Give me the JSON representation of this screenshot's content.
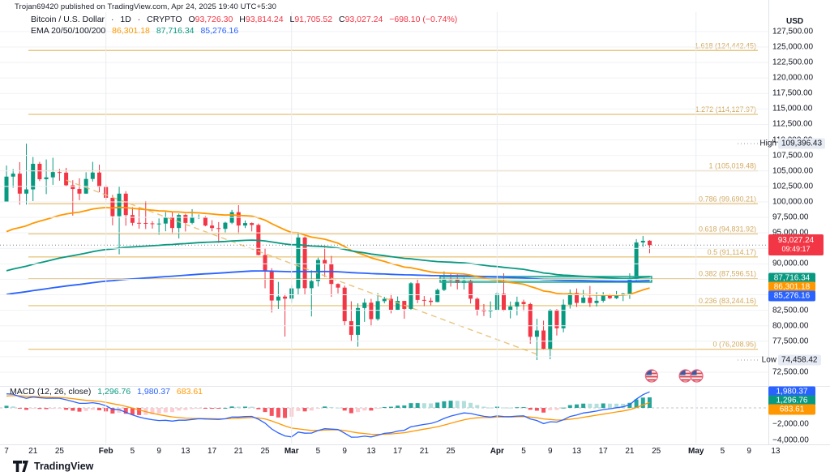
{
  "watermark": "Trojan69420 published on TradingView.com, Apr 24, 2025 19:40 UTC+5:30",
  "legend": {
    "symbol": "Bitcoin / U.S. Dollar",
    "sep": "·",
    "interval": "1D",
    "exchange": "CRYPTO",
    "ohlc": {
      "o_label": "O",
      "o": "93,726.30",
      "h_label": "H",
      "h": "93,814.24",
      "l_label": "L",
      "l": "91,705.52",
      "c_label": "C",
      "c": "93,027.24",
      "change": "−698.10 (−0.74%)"
    },
    "ema": {
      "label": "EMA 20/50/100/200",
      "values": [
        {
          "value": "86,301.18",
          "color": "#FF9800"
        },
        {
          "value": "87,716.34",
          "color": "#089981"
        },
        {
          "value": "85,276.16",
          "color": "#2962FF"
        }
      ]
    }
  },
  "macd_pane": {
    "title": "MACD (12, 26, close)",
    "values": [
      {
        "value": "1,296.76",
        "color": "#089981"
      },
      {
        "value": "1,980.37",
        "color": "#2962FF"
      },
      {
        "value": "683.61",
        "color": "#FF9800"
      }
    ]
  },
  "price_axis": {
    "currency": "USD",
    "labels": [
      {
        "price": 127500,
        "text": "127,500.00"
      },
      {
        "price": 125000,
        "text": "125,000.00"
      },
      {
        "price": 122500,
        "text": "122,500.00"
      },
      {
        "price": 120000,
        "text": "120,000.00"
      },
      {
        "price": 117500,
        "text": "117,500.00"
      },
      {
        "price": 115000,
        "text": "115,000.00"
      },
      {
        "price": 112500,
        "text": "112,500.00"
      },
      {
        "price": 110000,
        "text": "110,000.00"
      },
      {
        "price": 107500,
        "text": "107,500.00"
      },
      {
        "price": 105000,
        "text": "105,000.00"
      },
      {
        "price": 102500,
        "text": "102,500.00"
      },
      {
        "price": 100000,
        "text": "100,000.00"
      },
      {
        "price": 97500,
        "text": "97,500.00"
      },
      {
        "price": 95000,
        "text": "95,000.00"
      },
      {
        "price": 90000,
        "text": "90,000.00"
      },
      {
        "price": 82500,
        "text": "82,500.00"
      },
      {
        "price": 80000,
        "text": "80,000.00"
      },
      {
        "price": 77500,
        "text": "77,500.00"
      },
      {
        "price": 72500,
        "text": "72,500.00"
      }
    ],
    "macd_labels": [
      {
        "value": -2000,
        "text": "−2,000.00"
      },
      {
        "value": -4000,
        "text": "−4,000.00"
      }
    ]
  },
  "time_axis": {
    "labels": [
      {
        "i": 0,
        "t": "7"
      },
      {
        "i": 4,
        "t": "21"
      },
      {
        "i": 8,
        "t": "25"
      },
      {
        "i": 15,
        "t": "Feb",
        "b": true
      },
      {
        "i": 19,
        "t": "5"
      },
      {
        "i": 23,
        "t": "9"
      },
      {
        "i": 27,
        "t": "13"
      },
      {
        "i": 31,
        "t": "17"
      },
      {
        "i": 35,
        "t": "21"
      },
      {
        "i": 39,
        "t": "25"
      },
      {
        "i": 43,
        "t": "Mar",
        "b": true
      },
      {
        "i": 47,
        "t": "5"
      },
      {
        "i": 51,
        "t": "9"
      },
      {
        "i": 55,
        "t": "13"
      },
      {
        "i": 59,
        "t": "17"
      },
      {
        "i": 63,
        "t": "21"
      },
      {
        "i": 67,
        "t": "25"
      },
      {
        "i": 74,
        "t": "Apr",
        "b": true
      },
      {
        "i": 78,
        "t": "5"
      },
      {
        "i": 82,
        "t": "9"
      },
      {
        "i": 86,
        "t": "13"
      },
      {
        "i": 90,
        "t": "17"
      },
      {
        "i": 94,
        "t": "21"
      },
      {
        "i": 98,
        "t": "25"
      },
      {
        "i": 104,
        "t": "May",
        "b": true
      },
      {
        "i": 108,
        "t": "5"
      },
      {
        "i": 112,
        "t": "9"
      },
      {
        "i": 116,
        "t": "13"
      }
    ]
  },
  "badges": {
    "high_marker": {
      "label": "High",
      "value": "109,396.43",
      "price": 109396.43
    },
    "low_marker": {
      "label": "Low",
      "value": "74,458.42",
      "price": 74458.42
    },
    "last_price": {
      "value": "93,027.24",
      "countdown": "09:49:17",
      "price": 93027.24,
      "color": "#F23645"
    },
    "ema_badges": [
      {
        "value": "87,716.34",
        "color": "#089981"
      },
      {
        "value": "86,301.18",
        "color": "#FF9800"
      },
      {
        "value": "85,276.16",
        "color": "#2962FF"
      }
    ],
    "macd_badges": [
      {
        "value": "1,980.37",
        "color": "#2962FF"
      },
      {
        "value": "1,296.76",
        "color": "#089981"
      },
      {
        "value": "683.61",
        "color": "#FF9800"
      }
    ]
  },
  "footer": {
    "brand": "TradingView"
  },
  "colors": {
    "up": "#089981",
    "down": "#F23645",
    "ema_orange": "#FF9800",
    "ema_teal": "#089981",
    "ema_blue": "#2962FF",
    "fib": "#E5BE6E",
    "fib_label": "#CFA558",
    "zone": "#22AB94",
    "hist_pos": "#26A69A",
    "hist_pos_light": "#B2DFDB",
    "hist_neg": "#F7525F",
    "hist_neg_light": "#FBCDD2",
    "grid_h": "#F0F2F6",
    "grid_v": "#EAECF0",
    "price_line": "#787B86"
  },
  "chart_data": {
    "type": "candlestick",
    "title": "Bitcoin / U.S. Dollar · 1D · CRYPTO",
    "interval": "1D",
    "start_date": "2025-01-17",
    "end_date": "2025-04-24",
    "visible_price_range": [
      72500,
      127500
    ],
    "high": 109396.43,
    "low": 74458.42,
    "last": 93027.24,
    "candles_ohlc": [
      [
        99988,
        105865,
        99950,
        104077
      ],
      [
        104077,
        105280,
        102277,
        104556
      ],
      [
        104556,
        106422,
        99539,
        101331
      ],
      [
        101331,
        109396,
        99559,
        102016
      ],
      [
        102016,
        107240,
        100120,
        106146
      ],
      [
        106146,
        106462,
        103358,
        103653
      ],
      [
        103653,
        106850,
        101252,
        103960
      ],
      [
        103960,
        107120,
        102750,
        104819
      ],
      [
        104819,
        105300,
        103420,
        104714
      ],
      [
        104714,
        105500,
        102500,
        102682
      ],
      [
        102682,
        103500,
        97777,
        102082
      ],
      [
        102082,
        103800,
        100270,
        101332
      ],
      [
        101332,
        104782,
        101310,
        103703
      ],
      [
        103703,
        106457,
        103278,
        104735
      ],
      [
        104735,
        106012,
        101560,
        102405
      ],
      [
        102405,
        102785,
        100279,
        100655
      ],
      [
        100655,
        101120,
        96210,
        97688
      ],
      [
        97688,
        102500,
        91530,
        101328
      ],
      [
        101328,
        101730,
        96150,
        97871
      ],
      [
        97871,
        99149,
        96155,
        96615
      ],
      [
        96615,
        99120,
        95676,
        96593
      ],
      [
        96593,
        100138,
        95620,
        96529
      ],
      [
        96529,
        96890,
        95688,
        96482
      ],
      [
        96482,
        97323,
        94713,
        96500
      ],
      [
        96500,
        98345,
        95256,
        97437
      ],
      [
        97437,
        98404,
        94876,
        95778
      ],
      [
        95778,
        98119,
        94088,
        97885
      ],
      [
        97885,
        98083,
        95218,
        96607
      ],
      [
        96607,
        98828,
        96377,
        97500
      ],
      [
        97500,
        97972,
        97233,
        97569
      ],
      [
        97569,
        97704,
        96049,
        96175
      ],
      [
        96175,
        97039,
        95242,
        95773
      ],
      [
        95773,
        96736,
        93388,
        95639
      ],
      [
        95639,
        96789,
        95030,
        96635
      ],
      [
        96635,
        98708,
        96414,
        98333
      ],
      [
        98333,
        99475,
        94871,
        96181
      ],
      [
        96181,
        96983,
        95771,
        96577
      ],
      [
        96577,
        96676,
        95231,
        96273
      ],
      [
        96273,
        96500,
        91369,
        91418
      ],
      [
        91418,
        92540,
        86050,
        88736
      ],
      [
        88736,
        89286,
        82131,
        84075
      ],
      [
        84075,
        87078,
        82716,
        84705
      ],
      [
        84705,
        85120,
        78248,
        84373
      ],
      [
        84373,
        86558,
        83717,
        86031
      ],
      [
        86031,
        95043,
        85040,
        94248
      ],
      [
        94248,
        94416,
        85081,
        86065
      ],
      [
        86065,
        88967,
        81500,
        87222
      ],
      [
        87222,
        91000,
        86334,
        90623
      ],
      [
        90623,
        92810,
        87857,
        89961
      ],
      [
        89961,
        91283,
        84667,
        86742
      ],
      [
        86742,
        86847,
        85218,
        86154
      ],
      [
        86154,
        86471,
        80052,
        80734
      ],
      [
        80734,
        83955,
        77459,
        78532
      ],
      [
        78532,
        83618,
        76606,
        82862
      ],
      [
        82862,
        84358,
        80635,
        83722
      ],
      [
        83722,
        84336,
        79931,
        81066
      ],
      [
        81066,
        85263,
        80818,
        83969
      ],
      [
        83969,
        84676,
        83613,
        84343
      ],
      [
        84343,
        85117,
        82004,
        82579
      ],
      [
        82579,
        84725,
        82518,
        84010
      ],
      [
        84010,
        84021,
        81134,
        82718
      ],
      [
        82718,
        87023,
        82553,
        86854
      ],
      [
        86854,
        87453,
        83650,
        84167
      ],
      [
        84167,
        84792,
        83178,
        84043
      ],
      [
        84043,
        84522,
        83291,
        83832
      ],
      [
        83832,
        85999,
        83794,
        85787
      ],
      [
        85787,
        88772,
        85596,
        87498
      ],
      [
        87498,
        88543,
        86322,
        87471
      ],
      [
        87471,
        88292,
        85861,
        86900
      ],
      [
        86900,
        87786,
        85853,
        87227
      ],
      [
        87227,
        87489,
        83585,
        84359
      ],
      [
        84359,
        84575,
        81644,
        82597
      ],
      [
        82597,
        83505,
        81573,
        82334
      ],
      [
        82334,
        83930,
        81279,
        82548
      ],
      [
        82548,
        85497,
        82424,
        85169
      ],
      [
        85169,
        88466,
        82352,
        82485
      ],
      [
        82485,
        83909,
        81189,
        83102
      ],
      [
        83102,
        84696,
        81670,
        83843
      ],
      [
        83843,
        84207,
        82377,
        83504
      ],
      [
        83504,
        83704,
        77097,
        78214
      ],
      [
        78214,
        81119,
        74458,
        79235
      ],
      [
        79235,
        80823,
        76198,
        76272
      ],
      [
        76272,
        82716,
        74589,
        82573
      ],
      [
        82573,
        82700,
        78426,
        79591
      ],
      [
        79591,
        84247,
        78936,
        83404
      ],
      [
        83404,
        85856,
        82769,
        85287
      ],
      [
        85287,
        86015,
        83027,
        83684
      ],
      [
        83684,
        85784,
        83639,
        84542
      ],
      [
        84542,
        86430,
        83034,
        83668
      ],
      [
        83668,
        85428,
        83100,
        84033
      ],
      [
        84033,
        85434,
        83751,
        84895
      ],
      [
        84895,
        85138,
        84301,
        84450
      ],
      [
        84450,
        85605,
        84312,
        85063
      ],
      [
        85063,
        85306,
        83977,
        85174
      ],
      [
        85174,
        88460,
        84327,
        87518
      ],
      [
        87518,
        93980,
        87074,
        93441
      ],
      [
        93441,
        94500,
        92725,
        93715
      ],
      [
        93726.3,
        93814.24,
        91705.52,
        93027.24
      ]
    ],
    "fib_levels": [
      {
        "level": "1.618",
        "price": 124442.45,
        "label": "1.618 (124,442.45)"
      },
      {
        "level": "1.272",
        "price": 114127.97,
        "label": "1.272 (114,127.97)"
      },
      {
        "level": "1",
        "price": 105019.48,
        "label": "1 (105,019.48)"
      },
      {
        "level": "0.786",
        "price": 99690.21,
        "label": "0.786 (99,690.21)"
      },
      {
        "level": "0.618",
        "price": 94831.92,
        "label": "0.618 (94,831.92)"
      },
      {
        "level": "0.5",
        "price": 91114.17,
        "label": "0.5 (91,114.17)"
      },
      {
        "level": "0.382",
        "price": 87596.51,
        "label": "0.382 (87,596.51)"
      },
      {
        "level": "0.236",
        "price": 83244.16,
        "label": "0.236 (83,244.16)"
      },
      {
        "level": "0",
        "price": 76208.95,
        "label": "0 (76,208.95)"
      }
    ],
    "zone": {
      "from_index": 65.4,
      "to_index": 97.3,
      "price_top": 87950,
      "price_bottom": 87040
    },
    "trendline": {
      "from_index": 9,
      "from_price": 103500,
      "to_index": 80.5,
      "to_price": 75200
    },
    "event_flags": [
      {
        "x_index": 97.3
      },
      {
        "x_index": 102.4
      },
      {
        "x_index": 104.1
      }
    ],
    "macd": {
      "params": "12, 26, close",
      "macd_line_value": 1980.37,
      "signal_line_value": 683.61,
      "histogram_value": 1296.76,
      "axis_labels": [
        -2000,
        -4000
      ]
    }
  }
}
